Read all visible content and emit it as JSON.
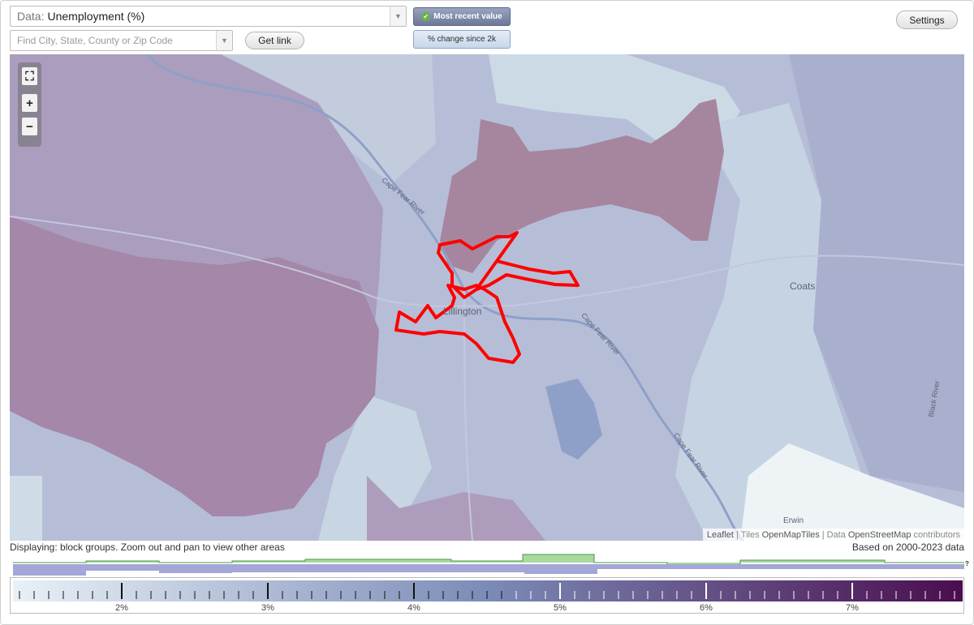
{
  "controls": {
    "data_prefix": "Data:",
    "data_value": "Unemployment (%)",
    "search_placeholder": "Find City, State, County or Zip Code",
    "get_link_label": "Get link",
    "most_recent_label": "Most recent value",
    "change_label": "% change since 2k",
    "settings_label": "Settings"
  },
  "map": {
    "place_labels": [
      "Lillington",
      "Coats",
      "Erwin"
    ],
    "river_labels": [
      "Cape Fear River",
      "Cape Fear River",
      "Cape Fear River",
      "Black River"
    ],
    "attribution": {
      "leaflet": "Leaflet",
      "sep1": "|",
      "tiles_prefix": "Tiles",
      "tiles_name": "OpenMapTiles",
      "sep2": "|",
      "data_prefix": "Data",
      "data_name": "OpenStreetMap",
      "data_suffix": "contributors"
    },
    "colors": {
      "low": "#c9d6e5",
      "mid": "#b3bbd5",
      "high": "#a98aab",
      "outline": "#ff0000"
    }
  },
  "footer": {
    "displaying": "Displaying: block groups. Zoom out and pan to view other areas",
    "based_on": "Based on 2000-2023 data"
  },
  "legend": {
    "ticks": [
      "2%",
      "3%",
      "4%",
      "5%",
      "6%",
      "7%"
    ],
    "question": "?",
    "gradient_start": "#e9f1f7",
    "gradient_mid": "#7b8bb7",
    "gradient_end": "#4a0d4e"
  }
}
